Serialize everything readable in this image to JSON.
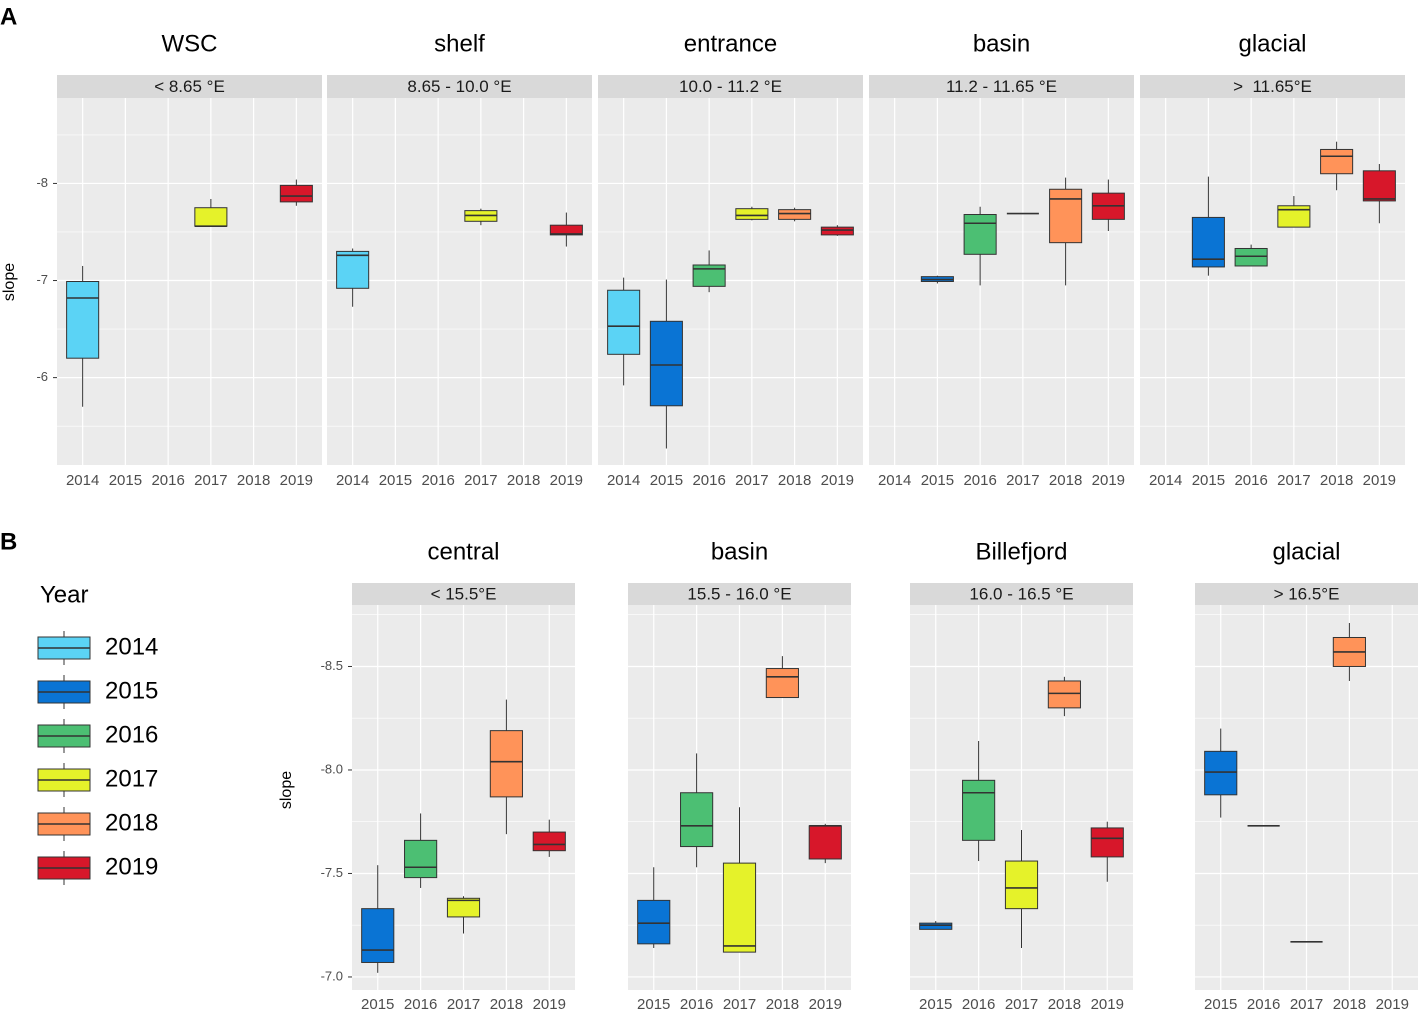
{
  "chart_data": [
    {
      "type": "box",
      "label": "A",
      "ylabel": "slope",
      "ylim": [
        -5.1,
        -8.88
      ],
      "yticks": [
        -8,
        -7,
        -6
      ],
      "categories": [
        "2014",
        "2015",
        "2016",
        "2017",
        "2018",
        "2019"
      ],
      "facets": [
        {
          "title": "WSC",
          "strip": "< 8.65 °E",
          "boxes": [
            {
              "min": -7.15,
              "q1": -6.99,
              "median": -6.82,
              "q3": -6.2,
              "max": -5.7
            },
            null,
            null,
            {
              "min": -7.84,
              "q1": -7.75,
              "median": -7.56,
              "q3": -7.56,
              "max": -7.56
            },
            null,
            {
              "min": -8.04,
              "q1": -7.98,
              "median": -7.87,
              "q3": -7.81,
              "max": -7.77
            }
          ]
        },
        {
          "title": "shelf",
          "strip": "8.65 - 10.0 °E",
          "boxes": [
            {
              "min": -7.33,
              "q1": -7.3,
              "median": -7.26,
              "q3": -6.92,
              "max": -6.73
            },
            null,
            null,
            {
              "min": -7.74,
              "q1": -7.72,
              "median": -7.67,
              "q3": -7.61,
              "max": -7.57
            },
            null,
            {
              "min": -7.7,
              "q1": -7.57,
              "median": -7.48,
              "q3": -7.47,
              "max": -7.35
            }
          ]
        },
        {
          "title": "entrance",
          "strip": "10.0 - 11.2 °E",
          "boxes": [
            {
              "min": -7.03,
              "q1": -6.9,
              "median": -6.53,
              "q3": -6.24,
              "max": -5.92
            },
            {
              "min": -7.01,
              "q1": -6.58,
              "median": -6.13,
              "q3": -5.71,
              "max": -5.27
            },
            {
              "min": -7.31,
              "q1": -7.16,
              "median": -7.12,
              "q3": -6.94,
              "max": -6.88
            },
            {
              "min": -7.76,
              "q1": -7.74,
              "median": -7.67,
              "q3": -7.63,
              "max": -7.62
            },
            {
              "min": -7.75,
              "q1": -7.73,
              "median": -7.69,
              "q3": -7.63,
              "max": -7.61
            },
            {
              "min": -7.57,
              "q1": -7.55,
              "median": -7.52,
              "q3": -7.47,
              "max": -7.46
            }
          ]
        },
        {
          "title": "basin",
          "strip": "11.2 - 11.65 °E",
          "boxes": [
            null,
            {
              "min": -7.05,
              "q1": -7.04,
              "median": -7.01,
              "q3": -6.99,
              "max": -6.97
            },
            {
              "min": -7.76,
              "q1": -7.68,
              "median": -7.59,
              "q3": -7.27,
              "max": -6.95
            },
            {
              "min": -7.69,
              "q1": -7.69,
              "median": -7.69,
              "q3": -7.69,
              "max": -7.69
            },
            {
              "min": -8.06,
              "q1": -7.94,
              "median": -7.84,
              "q3": -7.39,
              "max": -6.95
            },
            {
              "min": -8.04,
              "q1": -7.9,
              "median": -7.77,
              "q3": -7.63,
              "max": -7.51
            }
          ]
        },
        {
          "title": "glacial",
          "strip": ">  11.65°E",
          "boxes": [
            null,
            {
              "min": -8.07,
              "q1": -7.65,
              "median": -7.22,
              "q3": -7.14,
              "max": -7.05
            },
            {
              "min": -7.37,
              "q1": -7.33,
              "median": -7.25,
              "q3": -7.15,
              "max": -7.15
            },
            {
              "min": -7.87,
              "q1": -7.77,
              "median": -7.73,
              "q3": -7.55,
              "max": -7.55
            },
            {
              "min": -8.43,
              "q1": -8.35,
              "median": -8.28,
              "q3": -8.1,
              "max": -7.93
            },
            {
              "min": -8.2,
              "q1": -8.13,
              "median": -7.84,
              "q3": -7.82,
              "max": -7.59
            }
          ]
        }
      ]
    },
    {
      "type": "box",
      "label": "B",
      "ylabel": "slope",
      "ylim": [
        -6.937,
        -8.797
      ],
      "yticks": [
        -8.5,
        {
          "value": -8,
          "label": "-8.0"
        },
        -7.5,
        {
          "value": -7,
          "label": "-7.0"
        }
      ],
      "categories": [
        "2015",
        "2016",
        "2017",
        "2018",
        "2019"
      ],
      "facets": [
        {
          "title": "central",
          "strip": "< 15.5°E",
          "boxes": [
            {
              "min": -7.54,
              "q1": -7.33,
              "median": -7.13,
              "q3": -7.07,
              "max": -7.02
            },
            {
              "min": -7.79,
              "q1": -7.66,
              "median": -7.53,
              "q3": -7.48,
              "max": -7.43
            },
            {
              "min": -7.39,
              "q1": -7.38,
              "median": -7.37,
              "q3": -7.29,
              "max": -7.21
            },
            {
              "min": -8.34,
              "q1": -8.19,
              "median": -8.04,
              "q3": -7.87,
              "max": -7.69
            },
            {
              "min": -7.76,
              "q1": -7.7,
              "median": -7.64,
              "q3": -7.61,
              "max": -7.58
            }
          ]
        },
        {
          "title": "basin",
          "strip": "15.5 - 16.0 °E",
          "boxes": [
            {
              "min": -7.53,
              "q1": -7.37,
              "median": -7.26,
              "q3": -7.16,
              "max": -7.14
            },
            {
              "min": -8.08,
              "q1": -7.89,
              "median": -7.73,
              "q3": -7.63,
              "max": -7.53
            },
            {
              "min": -7.82,
              "q1": -7.55,
              "median": -7.15,
              "q3": -7.12,
              "max": -7.12
            },
            {
              "min": -8.55,
              "q1": -8.49,
              "median": -8.45,
              "q3": -8.35,
              "max": -8.35
            },
            {
              "min": -7.74,
              "q1": -7.73,
              "median": -7.73,
              "q3": -7.57,
              "max": -7.55
            }
          ]
        },
        {
          "title": "Billefjord",
          "strip": "16.0 - 16.5 °E",
          "boxes": [
            {
              "min": -7.27,
              "q1": -7.26,
              "median": -7.25,
              "q3": -7.23,
              "max": -7.23
            },
            {
              "min": -8.14,
              "q1": -7.95,
              "median": -7.89,
              "q3": -7.66,
              "max": -7.56
            },
            {
              "min": -7.71,
              "q1": -7.56,
              "median": -7.43,
              "q3": -7.33,
              "max": -7.14
            },
            {
              "min": -8.45,
              "q1": -8.43,
              "median": -8.37,
              "q3": -8.3,
              "max": -8.26
            },
            {
              "min": -7.75,
              "q1": -7.72,
              "median": -7.67,
              "q3": -7.58,
              "max": -7.46
            }
          ]
        },
        {
          "title": "glacial",
          "strip": "> 16.5°E",
          "boxes": [
            {
              "min": -8.2,
              "q1": -8.09,
              "median": -7.99,
              "q3": -7.88,
              "max": -7.77
            },
            {
              "min": -7.73,
              "q1": -7.73,
              "median": -7.73,
              "q3": -7.73,
              "max": -7.73
            },
            {
              "min": -7.17,
              "q1": -7.17,
              "median": -7.17,
              "q3": -7.17,
              "max": -7.17
            },
            {
              "min": -8.71,
              "q1": -8.64,
              "median": -8.57,
              "q3": -8.5,
              "max": -8.43
            },
            null
          ]
        }
      ]
    }
  ],
  "legend": {
    "title": "Year",
    "items": [
      {
        "name": "2014",
        "color": "#5bd3f5"
      },
      {
        "name": "2015",
        "color": "#0a74d4"
      },
      {
        "name": "2016",
        "color": "#4cbf73"
      },
      {
        "name": "2017",
        "color": "#e5f22a"
      },
      {
        "name": "2018",
        "color": "#ff9359"
      },
      {
        "name": "2019",
        "color": "#d7172a"
      }
    ]
  }
}
